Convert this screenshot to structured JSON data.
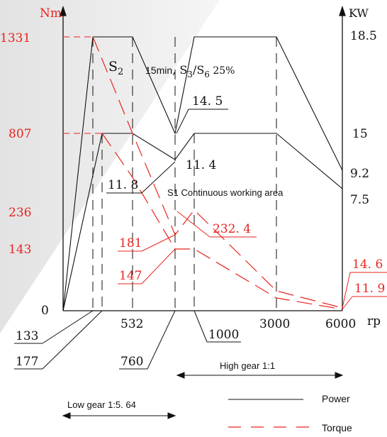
{
  "chart_data": {
    "type": "line",
    "y_left_unit": "Nm",
    "y_right_unit": "KW",
    "x_unit": "rp",
    "left_ticks": [
      {
        "label": "1331",
        "value": 1331
      },
      {
        "label": "807",
        "value": 807
      },
      {
        "label": "236",
        "value": 236
      },
      {
        "label": "143",
        "value": 143
      },
      {
        "label": "0",
        "value": 0
      }
    ],
    "right_ticks": [
      {
        "label": "18.5",
        "value": 18.5
      },
      {
        "label": "15",
        "value": 15
      },
      {
        "label": "9.2",
        "value": 9.2
      },
      {
        "label": "7.5",
        "value": 7.5
      }
    ],
    "x_ticks_top": [
      {
        "label": "532",
        "value": 532
      },
      {
        "label": "3000",
        "value": 3000
      },
      {
        "label": "6000",
        "value": 6000
      }
    ],
    "x_ticks_callout": [
      {
        "label": "133",
        "value": 133
      },
      {
        "label": "177",
        "value": 177
      },
      {
        "label": "760",
        "value": 760
      },
      {
        "label": "1000",
        "value": 1000
      }
    ],
    "annotations": {
      "s2": "S",
      "s2_sub": "2",
      "s3_prefix": "15min",
      "s3_rest": ", S",
      "s3_sub": "3",
      "s3_slash": "/S",
      "s6_sub": "6",
      "s6_pct": " 25%",
      "v14_5": "14. 5",
      "v11_4": "11. 4",
      "v11_8": "11. 8",
      "s1_area": "S1 Continuous working area",
      "t181": "181",
      "t147": "147",
      "t232_4": "232. 4",
      "t14_6": "14. 6",
      "t11_9": "11. 9"
    },
    "gear_ranges": {
      "high": "High gear 1:1",
      "low": "Low gear 1:5. 64"
    },
    "legend": [
      {
        "name": "Power",
        "style": "solid",
        "color": "#111111"
      },
      {
        "name": "Torque",
        "style": "dashed",
        "color": "#e8251f"
      }
    ],
    "series": [
      {
        "name": "Power",
        "curve": "S2 / S3-S6 25%",
        "points": [
          [
            0,
            0
          ],
          [
            133,
            18.5
          ],
          [
            532,
            18.5
          ],
          [
            760,
            15
          ],
          [
            1000,
            18.5
          ],
          [
            3000,
            18.5
          ],
          [
            6000,
            9.2
          ]
        ]
      },
      {
        "name": "Power",
        "curve": "S1",
        "points": [
          [
            0,
            0
          ],
          [
            177,
            15
          ],
          [
            532,
            15
          ],
          [
            760,
            11.4
          ],
          [
            1000,
            15
          ],
          [
            3000,
            15
          ],
          [
            6000,
            7.5
          ]
        ]
      },
      {
        "name": "Torque",
        "curve": "S2 / S3-S6 25%",
        "points": [
          [
            133,
            1331
          ],
          [
            532,
            807
          ],
          [
            760,
            181
          ],
          [
            1000,
            232.4
          ],
          [
            3000,
            80
          ],
          [
            6000,
            14.6
          ]
        ]
      },
      {
        "name": "Torque",
        "curve": "S1",
        "points": [
          [
            177,
            807
          ],
          [
            532,
            560
          ],
          [
            760,
            147
          ],
          [
            1000,
            147
          ],
          [
            3000,
            60
          ],
          [
            6000,
            11.9
          ]
        ]
      }
    ],
    "grid": false
  }
}
